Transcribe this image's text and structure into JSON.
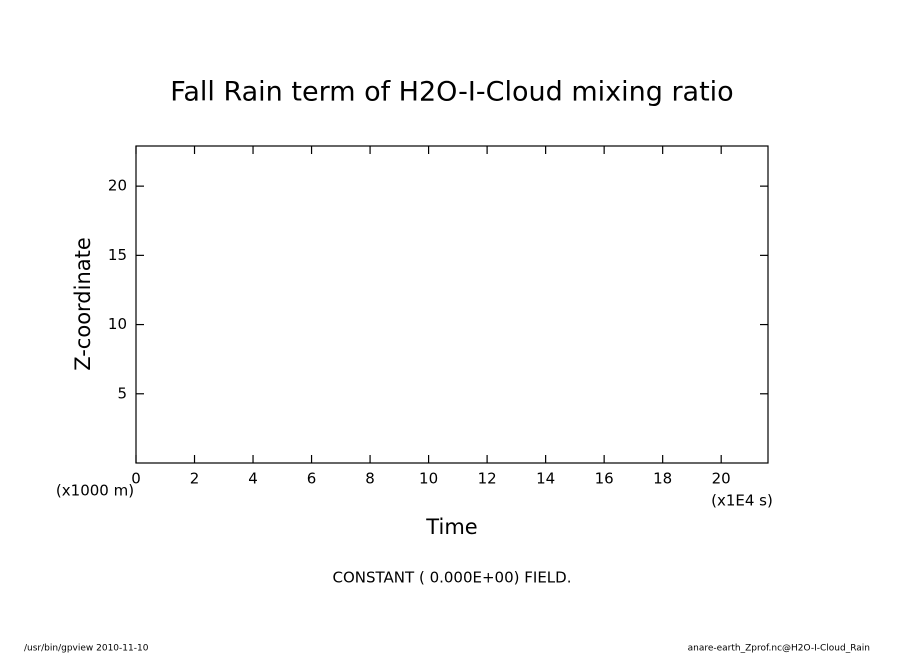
{
  "chart_data": {
    "type": "line",
    "title": "Fall Rain term of H2O-I-Cloud mixing ratio",
    "x_label": "Time",
    "y_label": "Z-coordinate",
    "x_unit": "(x1E4 s)",
    "y_unit": "(x1000 m)",
    "annotation": "CONSTANT ( 0.000E+00) FIELD.",
    "footer_left": "/usr/bin/gpview   2010-11-10",
    "footer_right": "anare-earth_Zprof.nc@H2O-I-Cloud_Rain",
    "xlim": [
      0,
      21.6
    ],
    "ylim": [
      0,
      22.9
    ],
    "xticks": [
      0,
      2,
      4,
      6,
      8,
      10,
      12,
      14,
      16,
      18,
      20
    ],
    "yticks": [
      5,
      10,
      15,
      20
    ]
  }
}
